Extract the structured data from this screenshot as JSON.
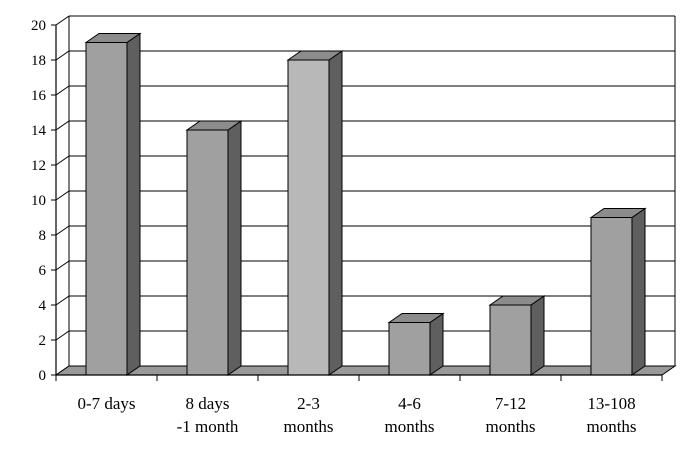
{
  "chart_data": {
    "type": "bar",
    "title": "",
    "xlabel": "",
    "ylabel": "",
    "ylim": [
      0,
      20
    ],
    "yticks": [
      "0",
      "2",
      "4",
      "6",
      "8",
      "10",
      "12",
      "14",
      "16",
      "18",
      "20"
    ],
    "grid": true,
    "categories": [
      [
        "0-7   days"
      ],
      [
        "8 days",
        "-1 month"
      ],
      [
        "2-3",
        "months"
      ],
      [
        "4-6",
        "months"
      ],
      [
        "7-12",
        "months"
      ],
      [
        "13-108",
        "months"
      ]
    ],
    "values": [
      19,
      14,
      18,
      3,
      4,
      9
    ],
    "colors": {
      "bar_front": [
        "#a0a0a0",
        "#a0a0a0",
        "#b8b8b8",
        "#a0a0a0",
        "#a0a0a0",
        "#a0a0a0"
      ],
      "bar_top": "#8c8c8c",
      "bar_side": "#5f5f5f",
      "floor": "#999999",
      "grid": "#000000"
    }
  }
}
